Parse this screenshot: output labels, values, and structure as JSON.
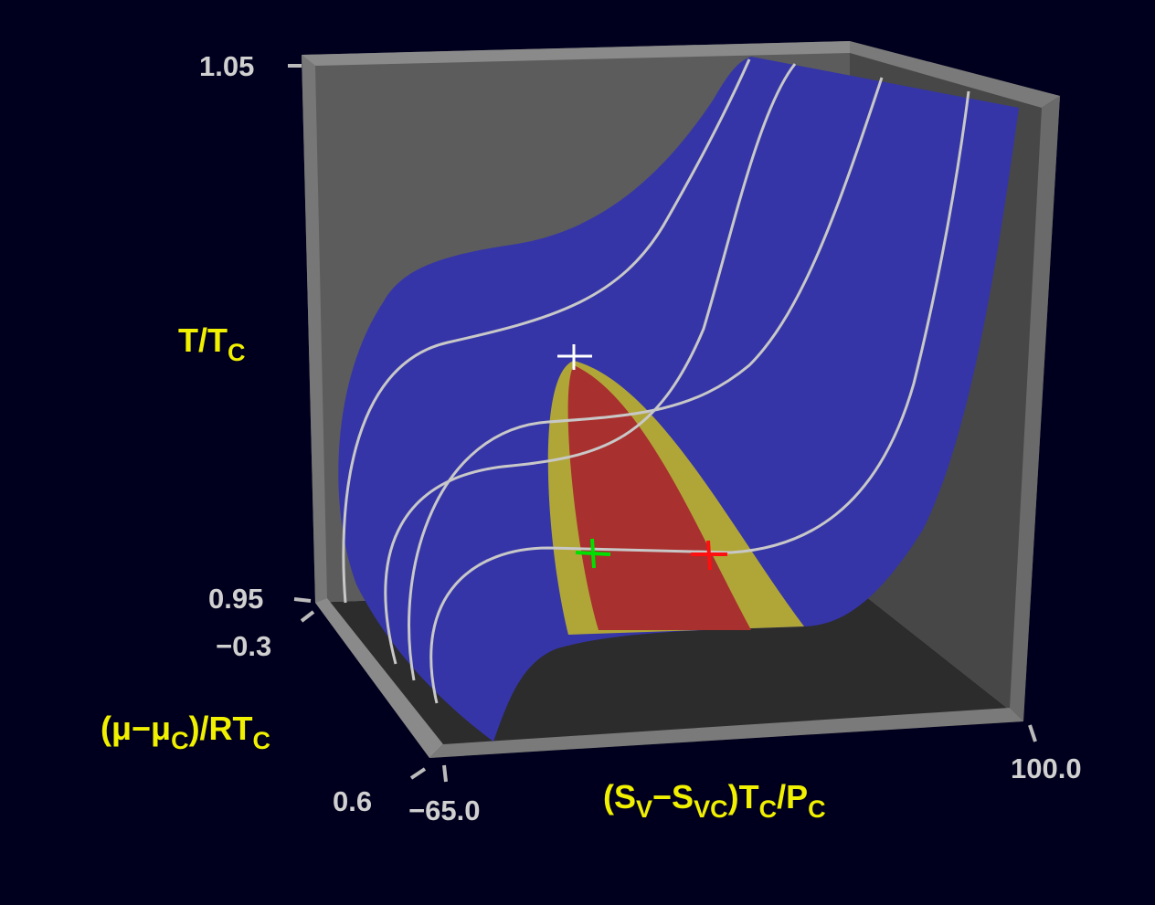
{
  "axes": [
    {
      "label_parts": [
        "T/T",
        "C"
      ],
      "ticks": [
        "1.05",
        "0.95"
      ]
    },
    {
      "label_parts": [
        "(μ−μ",
        "C",
        ")/RT",
        "C"
      ],
      "ticks": [
        "−0.3",
        "0.6"
      ]
    },
    {
      "label_parts": [
        "(S",
        "V",
        "−S",
        "VC",
        ")T",
        "C",
        "/P",
        "C"
      ],
      "ticks": [
        "−65.0",
        "100.0"
      ]
    }
  ]
}
